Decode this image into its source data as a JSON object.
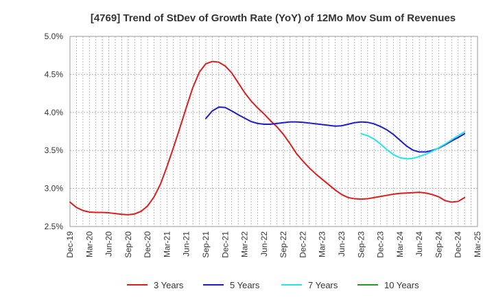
{
  "chart_data": {
    "type": "line",
    "title": "[4769]  Trend of StDev of Growth Rate (YoY) of 12Mo Mov Sum of Revenues",
    "xlabel": "",
    "ylabel": "",
    "ylim": [
      2.5,
      5.0
    ],
    "yticks": [
      2.5,
      3.0,
      3.5,
      4.0,
      4.5,
      5.0
    ],
    "ytick_labels": [
      "2.5%",
      "3.0%",
      "3.5%",
      "4.0%",
      "4.5%",
      "5.0%"
    ],
    "x_categories": [
      "Dec-19",
      "Mar-20",
      "Jun-20",
      "Sep-20",
      "Dec-20",
      "Mar-21",
      "Jun-21",
      "Sep-21",
      "Dec-21",
      "Mar-22",
      "Jun-22",
      "Sep-22",
      "Dec-22",
      "Mar-23",
      "Jun-23",
      "Sep-23",
      "Dec-23",
      "Mar-24",
      "Jun-24",
      "Sep-24",
      "Dec-24",
      "Mar-25"
    ],
    "grid": true,
    "legend_position": "bottom",
    "series": [
      {
        "name": "3 Years",
        "color": "#dd1c1c",
        "start_index": 0,
        "values": [
          2.82,
          2.75,
          2.71,
          2.69,
          2.685,
          2.685,
          2.68,
          2.67,
          2.66,
          2.655,
          2.665,
          2.7,
          2.77,
          2.89,
          3.06,
          3.29,
          3.54,
          3.8,
          4.07,
          4.33,
          4.53,
          4.64,
          4.67,
          4.66,
          4.61,
          4.52,
          4.39,
          4.26,
          4.15,
          4.06,
          3.98,
          3.89,
          3.81,
          3.71,
          3.59,
          3.46,
          3.36,
          3.27,
          3.19,
          3.12,
          3.05,
          2.98,
          2.92,
          2.88,
          2.865,
          2.86,
          2.865,
          2.88,
          2.895,
          2.91,
          2.925,
          2.935,
          2.94,
          2.945,
          2.95,
          2.94,
          2.92,
          2.89,
          2.84,
          2.82,
          2.83,
          2.88
        ]
      },
      {
        "name": "5 Years",
        "color": "#1c1ccc",
        "start_index": 21,
        "values": [
          3.92,
          4.02,
          4.07,
          4.065,
          4.02,
          3.97,
          3.925,
          3.88,
          3.855,
          3.845,
          3.845,
          3.855,
          3.865,
          3.875,
          3.875,
          3.87,
          3.86,
          3.85,
          3.84,
          3.83,
          3.82,
          3.825,
          3.845,
          3.865,
          3.875,
          3.87,
          3.85,
          3.815,
          3.77,
          3.71,
          3.635,
          3.56,
          3.505,
          3.48,
          3.48,
          3.5,
          3.53,
          3.575,
          3.625,
          3.67,
          3.72
        ]
      },
      {
        "name": "7 Years",
        "color": "#22e6e6",
        "start_index": 45,
        "values": [
          3.72,
          3.695,
          3.65,
          3.585,
          3.51,
          3.445,
          3.405,
          3.39,
          3.395,
          3.42,
          3.45,
          3.49,
          3.535,
          3.585,
          3.64,
          3.695,
          3.745
        ]
      },
      {
        "name": "10 Years",
        "color": "#229922",
        "start_index": 0,
        "values": []
      }
    ]
  }
}
